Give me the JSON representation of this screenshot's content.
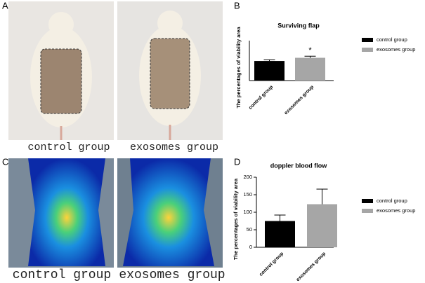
{
  "panels": [
    "A",
    "B",
    "C",
    "D"
  ],
  "photo_captions": [
    "control group",
    "exosomes group"
  ],
  "chart_data": [
    {
      "type": "bar",
      "title": "Surviving flap",
      "y_label": "The percentages of viability area",
      "categories": [
        "control group",
        "exosomes group"
      ],
      "values": [
        49,
        57
      ],
      "errors": [
        3,
        4
      ],
      "colors": [
        "#000000",
        "#a6a6a6"
      ],
      "annotation": "*",
      "ylim": [
        0,
        100
      ],
      "yticks": [],
      "legend": "right"
    },
    {
      "type": "bar",
      "title": "doppler blood flow",
      "y_label": "The percentages of viability area",
      "categories": [
        "control group",
        "exosomes group"
      ],
      "values": [
        75,
        123
      ],
      "errors": [
        17,
        43
      ],
      "colors": [
        "#000000",
        "#a6a6a6"
      ],
      "ylim": [
        0,
        200
      ],
      "yticks": [
        0,
        50,
        100,
        150,
        200
      ],
      "legend": "right"
    }
  ]
}
